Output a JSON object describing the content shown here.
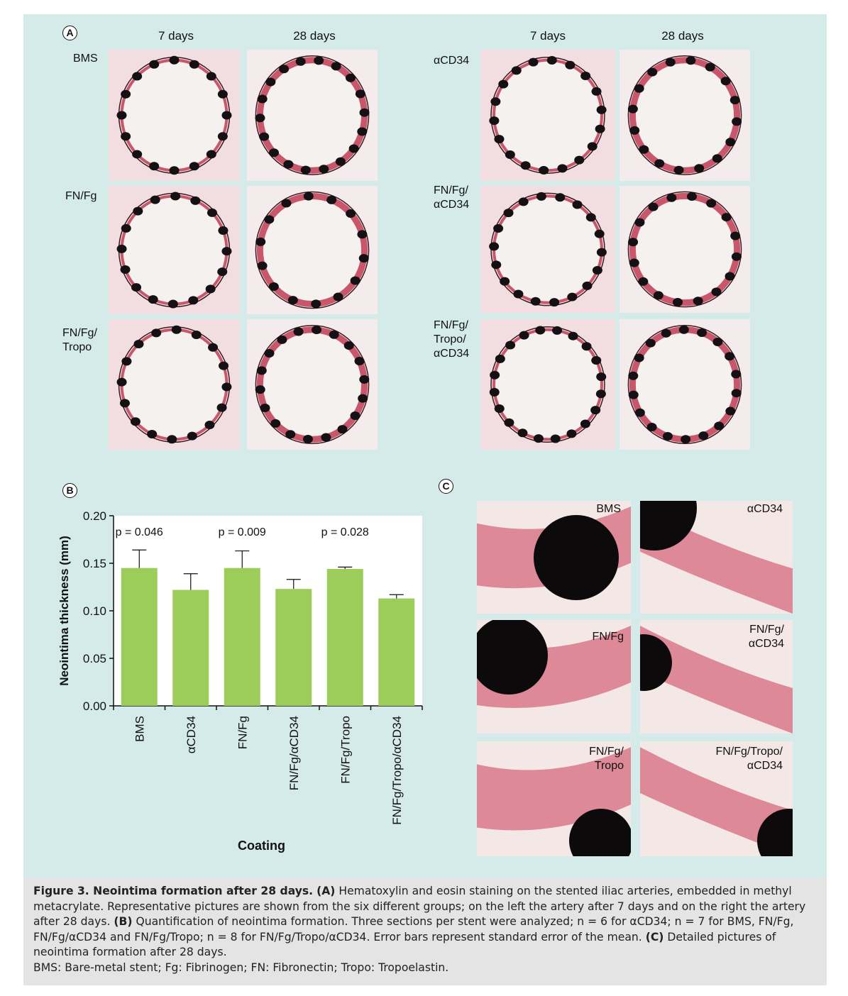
{
  "panelA": {
    "letter": "A",
    "left_headers": [
      "7 days",
      "28 days"
    ],
    "right_headers": [
      "7 days",
      "28 days"
    ],
    "left_rows": [
      {
        "label": [
          "BMS"
        ]
      },
      {
        "label": [
          "FN/Fg"
        ]
      },
      {
        "label": [
          "FN/Fg/",
          "Tropo"
        ]
      }
    ],
    "right_rows": [
      {
        "label": [
          "αCD34"
        ]
      },
      {
        "label": [
          "FN/Fg/",
          "αCD34"
        ]
      },
      {
        "label": [
          "FN/Fg/",
          "Tropo/",
          "αCD34"
        ]
      }
    ]
  },
  "panelB": {
    "letter": "B"
  },
  "panelC": {
    "letter": "C",
    "tiles": [
      {
        "label": [
          "BMS"
        ]
      },
      {
        "label": [
          "αCD34"
        ]
      },
      {
        "label": [
          "FN/Fg"
        ]
      },
      {
        "label": [
          "FN/Fg/",
          "αCD34"
        ]
      },
      {
        "label": [
          "FN/Fg/",
          "Tropo"
        ]
      },
      {
        "label": [
          "FN/Fg/Tropo/",
          "αCD34"
        ]
      }
    ]
  },
  "chart_data": {
    "type": "bar",
    "categories": [
      "BMS",
      "αCD34",
      "FN/Fg",
      "FN/Fg/αCD34",
      "FN/Fg/Tropo",
      "FN/Fg/Tropo/αCD34"
    ],
    "values": [
      0.145,
      0.122,
      0.145,
      0.123,
      0.144,
      0.113
    ],
    "errors": [
      0.019,
      0.017,
      0.018,
      0.01,
      0.002,
      0.004
    ],
    "xlabel": "Coating",
    "ylabel": "Neointima thickness (mm)",
    "ylim": [
      0,
      0.2
    ],
    "yticks": [
      "0.00",
      "0.05",
      "0.10",
      "0.15",
      "0.20"
    ],
    "annotations": [
      "p = 0.046",
      "p = 0.009",
      "p = 0.028"
    ],
    "bar_color": "#9ccc5a",
    "grid": false
  },
  "caption": {
    "title": "Figure 3. Neointima formation after 28 days.",
    "a_tag": "(A)",
    "a_text": " Hematoxylin and eosin staining on the stented iliac arteries, embedded in methyl metacrylate. Representative pictures are shown from the six different groups; on the left the artery after 7 days and on the right the artery after 28 days. ",
    "b_tag": "(B)",
    "b_text": " Quantification of neointima formation. Three sections per stent were analyzed; n = 6 for αCD34; n = 7 for BMS, FN/Fg, FN/Fg/αCD34 and FN/Fg/Tropo; n = 8 for FN/Fg/Tropo/αCD34. Error bars represent standard error of the mean. ",
    "c_tag": "(C)",
    "c_text": " Detailed pictures of neointima formation after 28 days.",
    "abbreviations": "BMS: Bare-metal stent; Fg: Fibrinogen; FN: Fibronectin; Tropo: Tropoelastin."
  }
}
